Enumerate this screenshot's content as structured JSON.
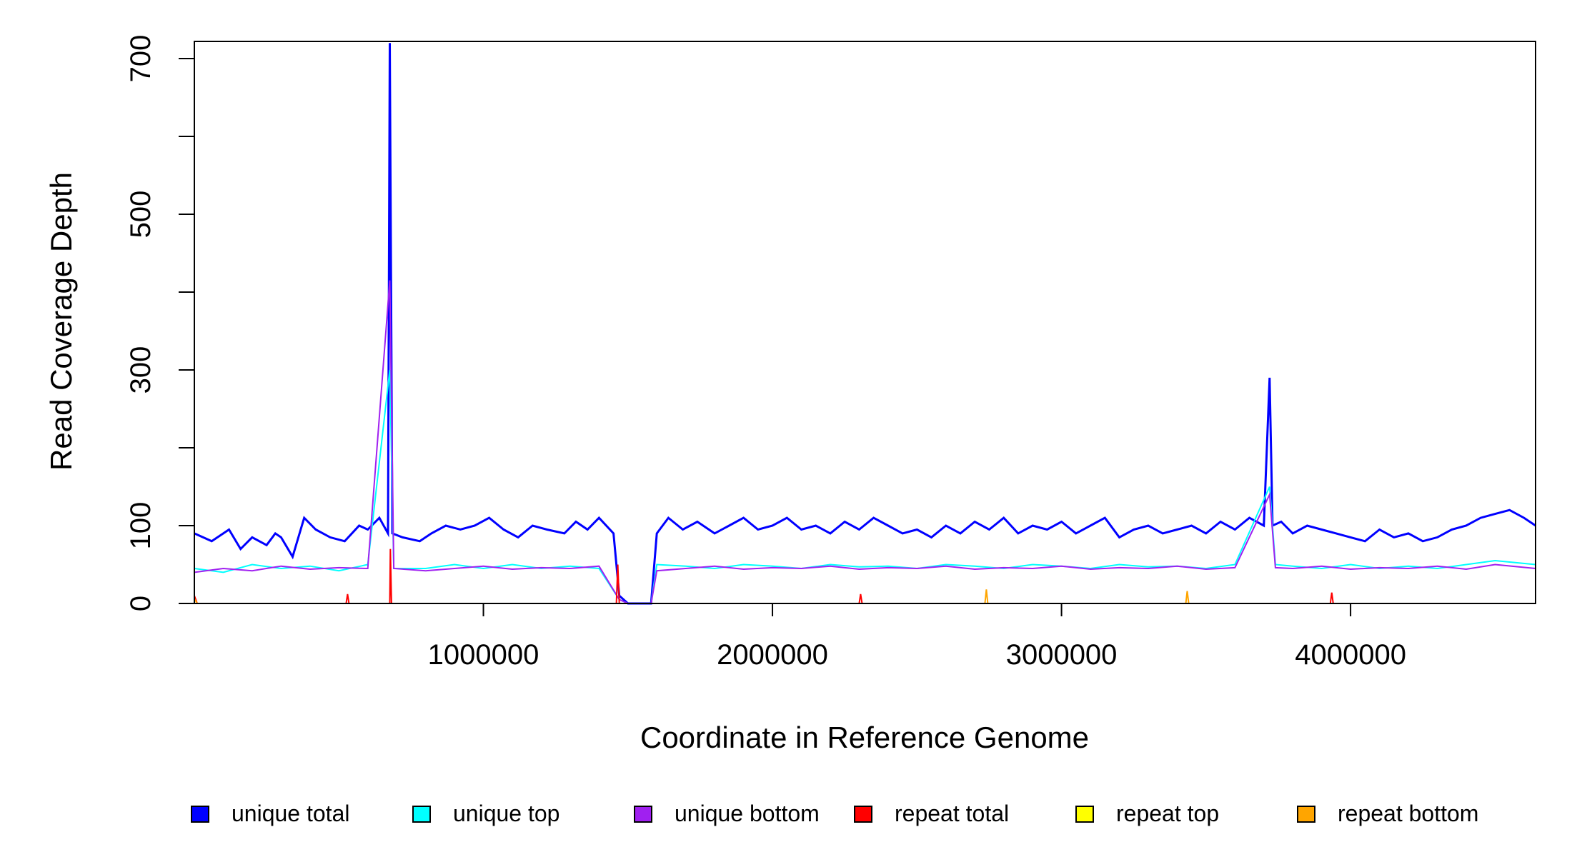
{
  "chart_data": {
    "type": "line",
    "title": "",
    "xlabel": "Coordinate in Reference Genome",
    "ylabel": "Read Coverage Depth",
    "xlim": [
      1,
      4640000
    ],
    "ylim": [
      0,
      720
    ],
    "x_ticks": [
      1000000,
      2000000,
      3000000,
      4000000
    ],
    "x_tick_labels": [
      "1000000",
      "2000000",
      "3000000",
      "4000000"
    ],
    "y_ticks": [
      0,
      100,
      200,
      300,
      400,
      500,
      600,
      700
    ],
    "y_tick_labels": [
      "0",
      "100",
      "",
      "300",
      "",
      "500",
      "",
      "700"
    ],
    "grid": false,
    "legend_position": "bottom",
    "series": [
      {
        "name": "unique total",
        "color": "#0000ff",
        "points": [
          [
            1,
            90
          ],
          [
            60000,
            80
          ],
          [
            120000,
            95
          ],
          [
            160000,
            70
          ],
          [
            200000,
            85
          ],
          [
            250000,
            75
          ],
          [
            280000,
            90
          ],
          [
            300000,
            85
          ],
          [
            340000,
            60
          ],
          [
            380000,
            110
          ],
          [
            420000,
            95
          ],
          [
            470000,
            85
          ],
          [
            520000,
            80
          ],
          [
            570000,
            100
          ],
          [
            600000,
            95
          ],
          [
            640000,
            110
          ],
          [
            670000,
            90
          ],
          [
            676000,
            720
          ],
          [
            685000,
            90
          ],
          [
            720000,
            85
          ],
          [
            780000,
            80
          ],
          [
            820000,
            90
          ],
          [
            870000,
            100
          ],
          [
            920000,
            95
          ],
          [
            970000,
            100
          ],
          [
            1020000,
            110
          ],
          [
            1070000,
            95
          ],
          [
            1120000,
            85
          ],
          [
            1170000,
            100
          ],
          [
            1220000,
            95
          ],
          [
            1280000,
            90
          ],
          [
            1320000,
            105
          ],
          [
            1360000,
            95
          ],
          [
            1400000,
            110
          ],
          [
            1450000,
            90
          ],
          [
            1470000,
            10
          ],
          [
            1500000,
            0
          ],
          [
            1580000,
            0
          ],
          [
            1600000,
            90
          ],
          [
            1640000,
            110
          ],
          [
            1690000,
            95
          ],
          [
            1740000,
            105
          ],
          [
            1800000,
            90
          ],
          [
            1850000,
            100
          ],
          [
            1900000,
            110
          ],
          [
            1950000,
            95
          ],
          [
            2000000,
            100
          ],
          [
            2050000,
            110
          ],
          [
            2100000,
            95
          ],
          [
            2150000,
            100
          ],
          [
            2200000,
            90
          ],
          [
            2250000,
            105
          ],
          [
            2300000,
            95
          ],
          [
            2350000,
            110
          ],
          [
            2400000,
            100
          ],
          [
            2450000,
            90
          ],
          [
            2500000,
            95
          ],
          [
            2550000,
            85
          ],
          [
            2600000,
            100
          ],
          [
            2650000,
            90
          ],
          [
            2700000,
            105
          ],
          [
            2750000,
            95
          ],
          [
            2800000,
            110
          ],
          [
            2850000,
            90
          ],
          [
            2900000,
            100
          ],
          [
            2950000,
            95
          ],
          [
            3000000,
            105
          ],
          [
            3050000,
            90
          ],
          [
            3100000,
            100
          ],
          [
            3150000,
            110
          ],
          [
            3200000,
            85
          ],
          [
            3250000,
            95
          ],
          [
            3300000,
            100
          ],
          [
            3350000,
            90
          ],
          [
            3400000,
            95
          ],
          [
            3450000,
            100
          ],
          [
            3500000,
            90
          ],
          [
            3550000,
            105
          ],
          [
            3600000,
            95
          ],
          [
            3650000,
            110
          ],
          [
            3700000,
            100
          ],
          [
            3720000,
            290
          ],
          [
            3730000,
            100
          ],
          [
            3760000,
            105
          ],
          [
            3800000,
            90
          ],
          [
            3850000,
            100
          ],
          [
            3900000,
            95
          ],
          [
            3950000,
            90
          ],
          [
            4000000,
            85
          ],
          [
            4050000,
            80
          ],
          [
            4100000,
            95
          ],
          [
            4150000,
            85
          ],
          [
            4200000,
            90
          ],
          [
            4250000,
            80
          ],
          [
            4300000,
            85
          ],
          [
            4350000,
            95
          ],
          [
            4400000,
            100
          ],
          [
            4450000,
            110
          ],
          [
            4500000,
            115
          ],
          [
            4550000,
            120
          ],
          [
            4600000,
            110
          ],
          [
            4640000,
            100
          ]
        ]
      },
      {
        "name": "unique top",
        "color": "#00ffff",
        "points": [
          [
            1,
            45
          ],
          [
            100000,
            40
          ],
          [
            200000,
            50
          ],
          [
            300000,
            45
          ],
          [
            400000,
            48
          ],
          [
            500000,
            42
          ],
          [
            600000,
            50
          ],
          [
            676000,
            300
          ],
          [
            690000,
            45
          ],
          [
            800000,
            45
          ],
          [
            900000,
            50
          ],
          [
            1000000,
            45
          ],
          [
            1100000,
            50
          ],
          [
            1200000,
            45
          ],
          [
            1300000,
            48
          ],
          [
            1400000,
            45
          ],
          [
            1470000,
            5
          ],
          [
            1500000,
            0
          ],
          [
            1580000,
            0
          ],
          [
            1600000,
            50
          ],
          [
            1700000,
            48
          ],
          [
            1800000,
            45
          ],
          [
            1900000,
            50
          ],
          [
            2000000,
            48
          ],
          [
            2100000,
            45
          ],
          [
            2200000,
            50
          ],
          [
            2300000,
            47
          ],
          [
            2400000,
            48
          ],
          [
            2500000,
            45
          ],
          [
            2600000,
            50
          ],
          [
            2700000,
            48
          ],
          [
            2800000,
            45
          ],
          [
            2900000,
            50
          ],
          [
            3000000,
            48
          ],
          [
            3100000,
            45
          ],
          [
            3200000,
            50
          ],
          [
            3300000,
            47
          ],
          [
            3400000,
            48
          ],
          [
            3500000,
            45
          ],
          [
            3600000,
            50
          ],
          [
            3720000,
            150
          ],
          [
            3740000,
            50
          ],
          [
            3800000,
            48
          ],
          [
            3900000,
            45
          ],
          [
            4000000,
            50
          ],
          [
            4100000,
            45
          ],
          [
            4200000,
            48
          ],
          [
            4300000,
            45
          ],
          [
            4400000,
            50
          ],
          [
            4500000,
            55
          ],
          [
            4640000,
            50
          ]
        ]
      },
      {
        "name": "unique bottom",
        "color": "#a020f0",
        "points": [
          [
            1,
            40
          ],
          [
            100000,
            45
          ],
          [
            200000,
            42
          ],
          [
            300000,
            48
          ],
          [
            400000,
            44
          ],
          [
            500000,
            46
          ],
          [
            600000,
            45
          ],
          [
            676000,
            415
          ],
          [
            690000,
            45
          ],
          [
            800000,
            42
          ],
          [
            900000,
            45
          ],
          [
            1000000,
            48
          ],
          [
            1100000,
            44
          ],
          [
            1200000,
            46
          ],
          [
            1300000,
            45
          ],
          [
            1400000,
            48
          ],
          [
            1470000,
            5
          ],
          [
            1500000,
            0
          ],
          [
            1580000,
            0
          ],
          [
            1600000,
            42
          ],
          [
            1700000,
            45
          ],
          [
            1800000,
            48
          ],
          [
            1900000,
            44
          ],
          [
            2000000,
            46
          ],
          [
            2100000,
            45
          ],
          [
            2200000,
            48
          ],
          [
            2300000,
            44
          ],
          [
            2400000,
            46
          ],
          [
            2500000,
            45
          ],
          [
            2600000,
            48
          ],
          [
            2700000,
            44
          ],
          [
            2800000,
            46
          ],
          [
            2900000,
            45
          ],
          [
            3000000,
            48
          ],
          [
            3100000,
            44
          ],
          [
            3200000,
            46
          ],
          [
            3300000,
            45
          ],
          [
            3400000,
            48
          ],
          [
            3500000,
            44
          ],
          [
            3600000,
            46
          ],
          [
            3720000,
            140
          ],
          [
            3740000,
            46
          ],
          [
            3800000,
            45
          ],
          [
            3900000,
            48
          ],
          [
            4000000,
            44
          ],
          [
            4100000,
            46
          ],
          [
            4200000,
            45
          ],
          [
            4300000,
            48
          ],
          [
            4400000,
            44
          ],
          [
            4500000,
            50
          ],
          [
            4640000,
            45
          ]
        ]
      },
      {
        "name": "repeat total",
        "color": "#ff0000",
        "points": [
          [
            1,
            10
          ],
          [
            10000,
            0
          ],
          [
            525000,
            0
          ],
          [
            530000,
            12
          ],
          [
            535000,
            0
          ],
          [
            676000,
            0
          ],
          [
            678000,
            70
          ],
          [
            682000,
            0
          ],
          [
            1460000,
            0
          ],
          [
            1465000,
            50
          ],
          [
            1470000,
            0
          ],
          [
            2300000,
            0
          ],
          [
            2305000,
            12
          ],
          [
            2310000,
            0
          ],
          [
            3930000,
            0
          ],
          [
            3935000,
            14
          ],
          [
            3940000,
            0
          ],
          [
            4640000,
            0
          ]
        ]
      },
      {
        "name": "repeat top",
        "color": "#ffff00",
        "points": [
          [
            1,
            0
          ],
          [
            4640000,
            0
          ]
        ]
      },
      {
        "name": "repeat bottom",
        "color": "#ffa500",
        "points": [
          [
            1,
            6
          ],
          [
            10000,
            0
          ],
          [
            2735000,
            0
          ],
          [
            2740000,
            18
          ],
          [
            2745000,
            0
          ],
          [
            3430000,
            0
          ],
          [
            3435000,
            16
          ],
          [
            3440000,
            0
          ],
          [
            3200000,
            0
          ],
          [
            4640000,
            0
          ]
        ]
      }
    ]
  }
}
